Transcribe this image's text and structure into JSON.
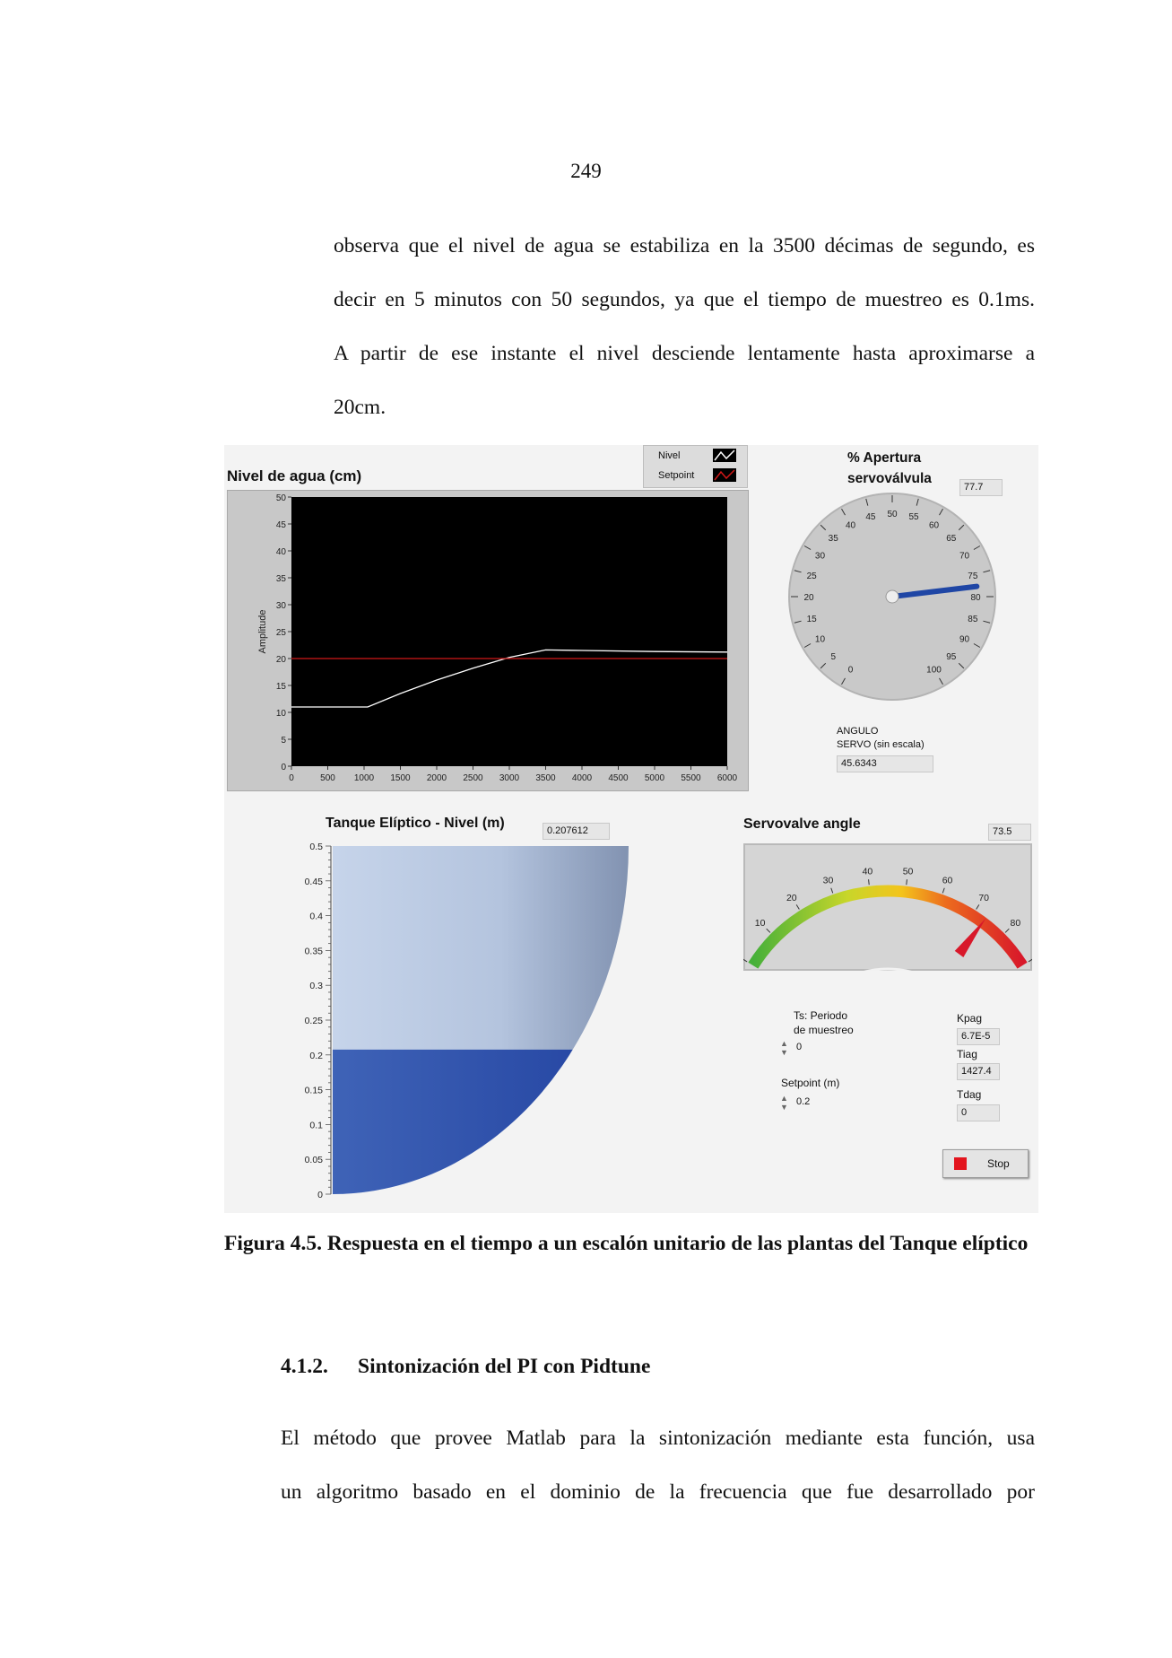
{
  "page_number": "249",
  "paragraph1": [
    "observa que el nivel de agua se estabiliza en la 3500 décimas de segundo, es",
    "decir en 5 minutos con 50 segundos, ya que el tiempo de muestreo es 0.1ms.",
    "A partir de ese instante el nivel desciende lentamente hasta aproximarse a",
    "20cm."
  ],
  "chart1": {
    "title": "Nivel de agua (cm)",
    "legend": [
      "Nivel",
      "Setpoint"
    ],
    "ylabel": "Amplitude"
  },
  "chart_data": [
    {
      "type": "line",
      "title": "Nivel de agua (cm)",
      "xlabel": "",
      "ylabel": "Amplitude",
      "xlim": [
        0,
        6000
      ],
      "ylim": [
        0,
        50
      ],
      "xticks": [
        0,
        500,
        1000,
        1500,
        2000,
        2500,
        3000,
        3500,
        4000,
        4500,
        5000,
        5500,
        6000
      ],
      "yticks": [
        0,
        5,
        10,
        15,
        20,
        25,
        30,
        35,
        40,
        45,
        50
      ],
      "legend_position": "top-right",
      "series": [
        {
          "name": "Nivel",
          "color": "#ffffff",
          "x": [
            0,
            1050,
            1500,
            2000,
            2500,
            3000,
            3500,
            4000,
            5000,
            6000
          ],
          "y": [
            11,
            11,
            13.5,
            16,
            18.2,
            20.2,
            21.6,
            21.5,
            21.3,
            21.2
          ]
        },
        {
          "name": "Setpoint",
          "color": "#d01818",
          "x": [
            0,
            6000
          ],
          "y": [
            20,
            20
          ]
        }
      ]
    },
    {
      "type": "gauge",
      "title": "% Apertura servoválvula",
      "value": 77.7,
      "range": [
        0,
        100
      ],
      "ticks": [
        0,
        5,
        10,
        15,
        20,
        25,
        30,
        35,
        40,
        45,
        50,
        55,
        60,
        65,
        70,
        75,
        80,
        85,
        90,
        95,
        100
      ]
    },
    {
      "type": "tank",
      "title": "Tanque Elíptico - Nivel (m)",
      "value": 0.207612,
      "range": [
        0,
        0.5
      ],
      "ticks": [
        "0",
        "0.05",
        "0.1",
        "0.15",
        "0.2",
        "0.25",
        "0.3",
        "0.35",
        "0.4",
        "0.45",
        "0.5"
      ]
    },
    {
      "type": "meter",
      "title": "Servovalve angle",
      "value": 73.5,
      "range": [
        0,
        90
      ],
      "ticks": [
        0,
        10,
        20,
        30,
        40,
        50,
        60,
        70,
        80,
        90
      ]
    }
  ],
  "gauge": {
    "title_line1": "% Apertura",
    "title_line2": "servoválvula",
    "value_display": "77.7",
    "angle_label1": "ANGULO",
    "angle_label2": "SERVO (sin escala)",
    "angle_value": "45.6343"
  },
  "tank": {
    "title": "Tanque Elíptico - Nivel (m)",
    "value_display": "0.207612"
  },
  "meter": {
    "title": "Servovalve angle",
    "value_display": "73.5"
  },
  "controls": {
    "ts_label1": "Ts: Periodo",
    "ts_label2": "de muestreo",
    "ts_value": "0",
    "setpoint_label": "Setpoint (m)",
    "setpoint_value": "0.2",
    "kpag_label": "Kpag",
    "kpag_value": "6.7E-5",
    "tiag_label": "Tiag",
    "tiag_value": "1427.4",
    "tdag_label": "Tdag",
    "tdag_value": "0",
    "stop_label": "Stop"
  },
  "caption": "Figura 4.5. Respuesta en el tiempo a un escalón unitario de las plantas del Tanque elíptico",
  "section": {
    "number": "4.1.2.",
    "title": "Sintonización del PI con Pidtune"
  },
  "paragraph2": [
    "El método que provee Matlab para la sintonización mediante esta función, usa",
    "un algoritmo basado en el dominio de la frecuencia que fue desarrollado por"
  ]
}
